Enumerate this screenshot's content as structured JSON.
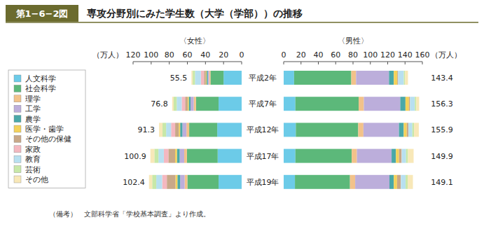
{
  "figure_label": "第1−6−2図",
  "title": "専攻分野別にみた学生数（大学（学部））の推移",
  "note": "（備考）　文部科学省「学校基本調査」より作成。",
  "chart_data": {
    "type": "bar",
    "orientation": "horizontal",
    "stacked": true,
    "data_labels": true,
    "legend": "left",
    "categories": [
      "平成2年",
      "平成7年",
      "平成12年",
      "平成17年",
      "平成19年"
    ],
    "unit_label": "（万人）",
    "female_label": "〈女性〉",
    "male_label": "〈男性〉",
    "female_xlim": [
      0,
      120
    ],
    "female_xticks": [
      0,
      20,
      40,
      60,
      80,
      100,
      120
    ],
    "male_xlim": [
      0,
      160
    ],
    "male_xticks": [
      0,
      20,
      40,
      60,
      80,
      100,
      120,
      140,
      160
    ],
    "series": [
      {
        "name": "人文科学",
        "color": "#6ccbe8",
        "female": [
          20.0,
          25.5,
          27.0,
          26.5,
          25.5
        ],
        "male": [
          12.0,
          13.5,
          14.0,
          13.5,
          13.0
        ]
      },
      {
        "name": "社会科学",
        "color": "#5cb87a",
        "female": [
          14.5,
          25.0,
          31.0,
          34.0,
          34.5
        ],
        "male": [
          66.0,
          73.0,
          72.0,
          65.0,
          63.5
        ]
      },
      {
        "name": "理学",
        "color": "#f2c28a",
        "female": [
          1.5,
          2.5,
          3.0,
          3.0,
          3.0
        ],
        "male": [
          5.5,
          6.0,
          6.0,
          6.0,
          6.0
        ]
      },
      {
        "name": "工学",
        "color": "#bcaedb",
        "female": [
          1.5,
          3.5,
          4.5,
          5.0,
          5.0
        ],
        "male": [
          38.0,
          42.0,
          41.0,
          40.0,
          39.5
        ]
      },
      {
        "name": "農学",
        "color": "#4aa8a8",
        "female": [
          1.3,
          2.0,
          2.5,
          3.0,
          3.0
        ],
        "male": [
          5.5,
          6.0,
          5.5,
          5.0,
          5.0
        ]
      },
      {
        "name": "医学・歯学",
        "color": "#f4d25a",
        "female": [
          0.8,
          1.2,
          1.5,
          2.0,
          2.2
        ],
        "male": [
          4.0,
          4.0,
          3.5,
          3.5,
          3.8
        ]
      },
      {
        "name": "その他の保健",
        "color": "#c8a888",
        "female": [
          2.0,
          2.8,
          4.0,
          7.5,
          9.5
        ],
        "male": [
          1.0,
          1.2,
          1.8,
          3.0,
          4.2
        ]
      },
      {
        "name": "家政",
        "color": "#f4b8c0",
        "female": [
          3.5,
          3.8,
          4.5,
          5.0,
          5.2
        ],
        "male": [
          0.1,
          0.1,
          0.1,
          0.2,
          0.2
        ]
      },
      {
        "name": "教育",
        "color": "#b8e0f0",
        "female": [
          6.5,
          5.5,
          5.5,
          6.0,
          6.5
        ],
        "male": [
          6.5,
          5.5,
          4.5,
          5.0,
          5.5
        ]
      },
      {
        "name": "芸術",
        "color": "#c8e8a8",
        "female": [
          2.5,
          3.3,
          4.0,
          4.5,
          4.5
        ],
        "male": [
          1.5,
          1.7,
          2.0,
          2.2,
          2.4
        ]
      },
      {
        "name": "その他",
        "color": "#f8e8b8",
        "female": [
          1.4,
          1.7,
          3.8,
          4.4,
          3.5
        ],
        "male": [
          3.3,
          3.3,
          5.5,
          6.5,
          6.0
        ]
      }
    ],
    "female_totals": [
      55.5,
      76.8,
      91.3,
      100.9,
      102.4
    ],
    "male_totals": [
      143.4,
      156.3,
      155.9,
      149.9,
      149.1
    ]
  }
}
